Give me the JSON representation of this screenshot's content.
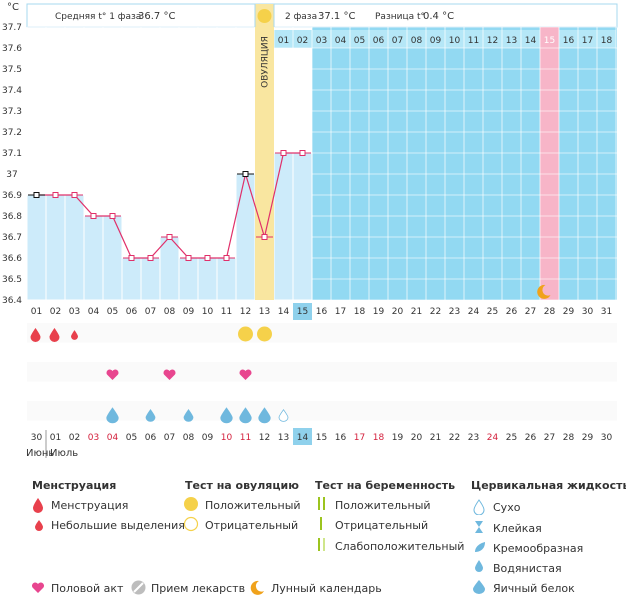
{
  "chart_data": {
    "type": "line",
    "unit_label": "°C",
    "y_ticks": [
      "37.7",
      "37.6",
      "37.5",
      "37.4",
      "37.3",
      "37.2",
      "37.1",
      "37",
      "36.9",
      "36.8",
      "36.7",
      "36.6",
      "36.5",
      "36.4"
    ],
    "ylim": [
      36.4,
      37.7
    ],
    "phase1_label": "Средняя t° 1 фаза",
    "phase1_value": "36.7 °C",
    "phase2_label": "2 фаза",
    "phase2_value": "37.1 °C",
    "diff_label": "Разница t°",
    "diff_value": "0.4 °C",
    "ovulation_label": "ОВУЛЯЦИЯ",
    "cycle_days_top": [
      "01",
      "02",
      "03",
      "04",
      "05",
      "06",
      "07",
      "08",
      "09",
      "10",
      "11",
      "12",
      "13",
      "14",
      "15",
      "16",
      "17",
      "18"
    ],
    "cycle_days": [
      "01",
      "02",
      "03",
      "04",
      "05",
      "06",
      "07",
      "08",
      "09",
      "10",
      "11",
      "12",
      "13",
      "14",
      "15",
      "16",
      "17",
      "18",
      "19",
      "20",
      "21",
      "22",
      "23",
      "24",
      "25",
      "26",
      "27",
      "28",
      "29",
      "30",
      "31"
    ],
    "current_day": "15",
    "dates": [
      "30",
      "01",
      "02",
      "03",
      "04",
      "05",
      "06",
      "07",
      "08",
      "09",
      "10",
      "11",
      "12",
      "13",
      "14",
      "15",
      "16",
      "17",
      "18",
      "19",
      "20",
      "21",
      "22",
      "23",
      "24",
      "25",
      "26",
      "27",
      "28",
      "29",
      "30"
    ],
    "date_red": [
      "03",
      "04",
      "10",
      "11",
      "17",
      "18",
      "24",
      "25"
    ],
    "current_date": "14",
    "month_prev": "Июнь",
    "month_curr": "Июль",
    "temperatures": [
      36.9,
      36.9,
      36.9,
      36.8,
      36.8,
      36.6,
      36.6,
      36.7,
      36.6,
      36.6,
      36.6,
      37.0,
      36.7,
      37.1,
      37.1
    ],
    "menstruation": [
      "big",
      "big",
      "small",
      null,
      null,
      null,
      null,
      null,
      null,
      null,
      null,
      null,
      null,
      null,
      null
    ],
    "ovulation_test": [
      null,
      null,
      null,
      null,
      null,
      null,
      null,
      null,
      null,
      null,
      null,
      "positive",
      "positive",
      null,
      null
    ],
    "intercourse": [
      false,
      false,
      false,
      false,
      true,
      false,
      false,
      true,
      false,
      false,
      false,
      true,
      false,
      false,
      false
    ],
    "cervical_fluid": [
      null,
      null,
      null,
      null,
      "egg-white",
      null,
      "watery",
      null,
      "watery",
      null,
      "egg-white",
      "egg-white",
      "egg-white",
      "dry",
      null
    ],
    "moon_day": "28",
    "colors": {
      "bg_top": "#92d9f2",
      "header_blue": "#b5e7f7",
      "bar_fill": "#cdebfa",
      "line": "#e0306a",
      "ovulation": "#f9e6a0",
      "next_period": "#f7b5c8",
      "red_date": "#d4213d",
      "current": "#8fd1ec"
    }
  },
  "legend": {
    "menstruation": {
      "title": "Менструация",
      "big": "Менструация",
      "small": "Небольшие выделения"
    },
    "ovulation_test": {
      "title": "Тест на овуляцию",
      "positive": "Положительный",
      "negative": "Отрицательный"
    },
    "pregnancy_test": {
      "title": "Тест на беременность",
      "positive": "Положительный",
      "negative": "Отрицательный",
      "weak": "Слабоположительный"
    },
    "cervical": {
      "title": "Цервикальная жидкость",
      "dry": "Сухо",
      "sticky": "Клейкая",
      "creamy": "Кремообразная",
      "watery": "Водянистая",
      "egg": "Яичный белок"
    },
    "bottom": {
      "sex": "Половой акт",
      "meds": "Прием лекарств",
      "moon": "Лунный календарь"
    }
  }
}
